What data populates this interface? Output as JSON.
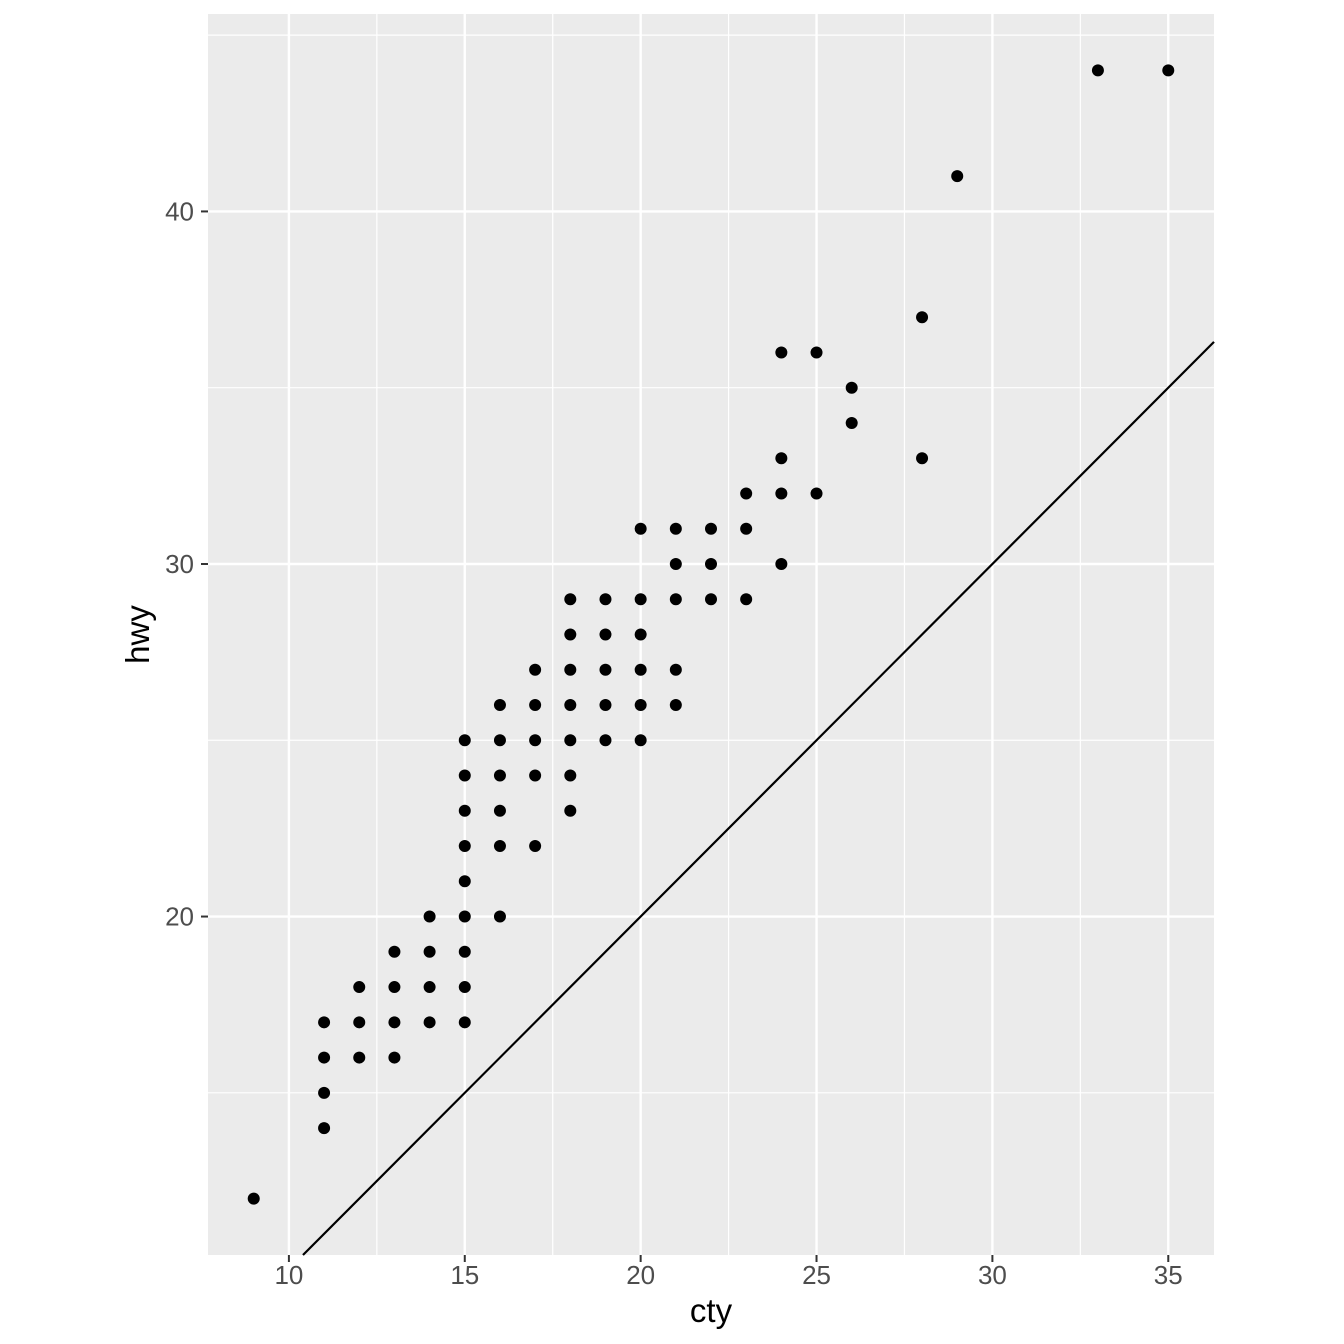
{
  "chart_data": {
    "type": "scatter",
    "title": "",
    "xlabel": "cty",
    "ylabel": "hwy",
    "xlim": [
      7.7,
      36.3
    ],
    "ylim": [
      10.4,
      45.6
    ],
    "x_major_ticks": [
      10,
      15,
      20,
      25,
      30,
      35
    ],
    "y_major_ticks": [
      20,
      30,
      40
    ],
    "x_minor_ticks": [
      12.5,
      17.5,
      22.5,
      27.5,
      32.5
    ],
    "y_minor_ticks": [
      15,
      25,
      35,
      45
    ],
    "grid": "on",
    "legend": "none",
    "theme": "ggplot-gray",
    "abline": {
      "slope": 1,
      "intercept": 0
    },
    "points": [
      [
        9,
        12
      ],
      [
        11,
        14
      ],
      [
        11,
        15
      ],
      [
        11,
        16
      ],
      [
        12,
        16
      ],
      [
        13,
        16
      ],
      [
        11,
        17
      ],
      [
        12,
        17
      ],
      [
        13,
        17
      ],
      [
        14,
        17
      ],
      [
        15,
        17
      ],
      [
        12,
        18
      ],
      [
        13,
        18
      ],
      [
        14,
        18
      ],
      [
        15,
        18
      ],
      [
        13,
        19
      ],
      [
        14,
        19
      ],
      [
        15,
        19
      ],
      [
        14,
        20
      ],
      [
        15,
        20
      ],
      [
        16,
        20
      ],
      [
        15,
        21
      ],
      [
        15,
        22
      ],
      [
        16,
        22
      ],
      [
        17,
        22
      ],
      [
        15,
        23
      ],
      [
        16,
        23
      ],
      [
        18,
        23
      ],
      [
        15,
        24
      ],
      [
        16,
        24
      ],
      [
        17,
        24
      ],
      [
        18,
        24
      ],
      [
        15,
        25
      ],
      [
        16,
        25
      ],
      [
        17,
        25
      ],
      [
        18,
        25
      ],
      [
        19,
        25
      ],
      [
        20,
        25
      ],
      [
        16,
        26
      ],
      [
        17,
        26
      ],
      [
        18,
        26
      ],
      [
        19,
        26
      ],
      [
        20,
        26
      ],
      [
        21,
        26
      ],
      [
        17,
        27
      ],
      [
        18,
        27
      ],
      [
        19,
        27
      ],
      [
        20,
        27
      ],
      [
        21,
        27
      ],
      [
        18,
        28
      ],
      [
        19,
        28
      ],
      [
        20,
        28
      ],
      [
        18,
        29
      ],
      [
        19,
        29
      ],
      [
        20,
        29
      ],
      [
        21,
        29
      ],
      [
        22,
        29
      ],
      [
        23,
        29
      ],
      [
        21,
        30
      ],
      [
        22,
        30
      ],
      [
        24,
        30
      ],
      [
        20,
        31
      ],
      [
        21,
        31
      ],
      [
        22,
        31
      ],
      [
        23,
        31
      ],
      [
        23,
        32
      ],
      [
        24,
        32
      ],
      [
        25,
        32
      ],
      [
        24,
        33
      ],
      [
        28,
        33
      ],
      [
        26,
        34
      ],
      [
        26,
        35
      ],
      [
        24,
        36
      ],
      [
        25,
        36
      ],
      [
        28,
        37
      ],
      [
        29,
        41
      ],
      [
        33,
        44
      ],
      [
        35,
        44
      ]
    ],
    "colors": {
      "background": "#FFFFFF",
      "panel": "#EBEBEB",
      "gridline": "#FFFFFF",
      "point": "#000000",
      "abline": "#000000",
      "tick_label": "#4D4D4D",
      "tick_mark": "#333333",
      "axis_title": "#000000"
    }
  }
}
